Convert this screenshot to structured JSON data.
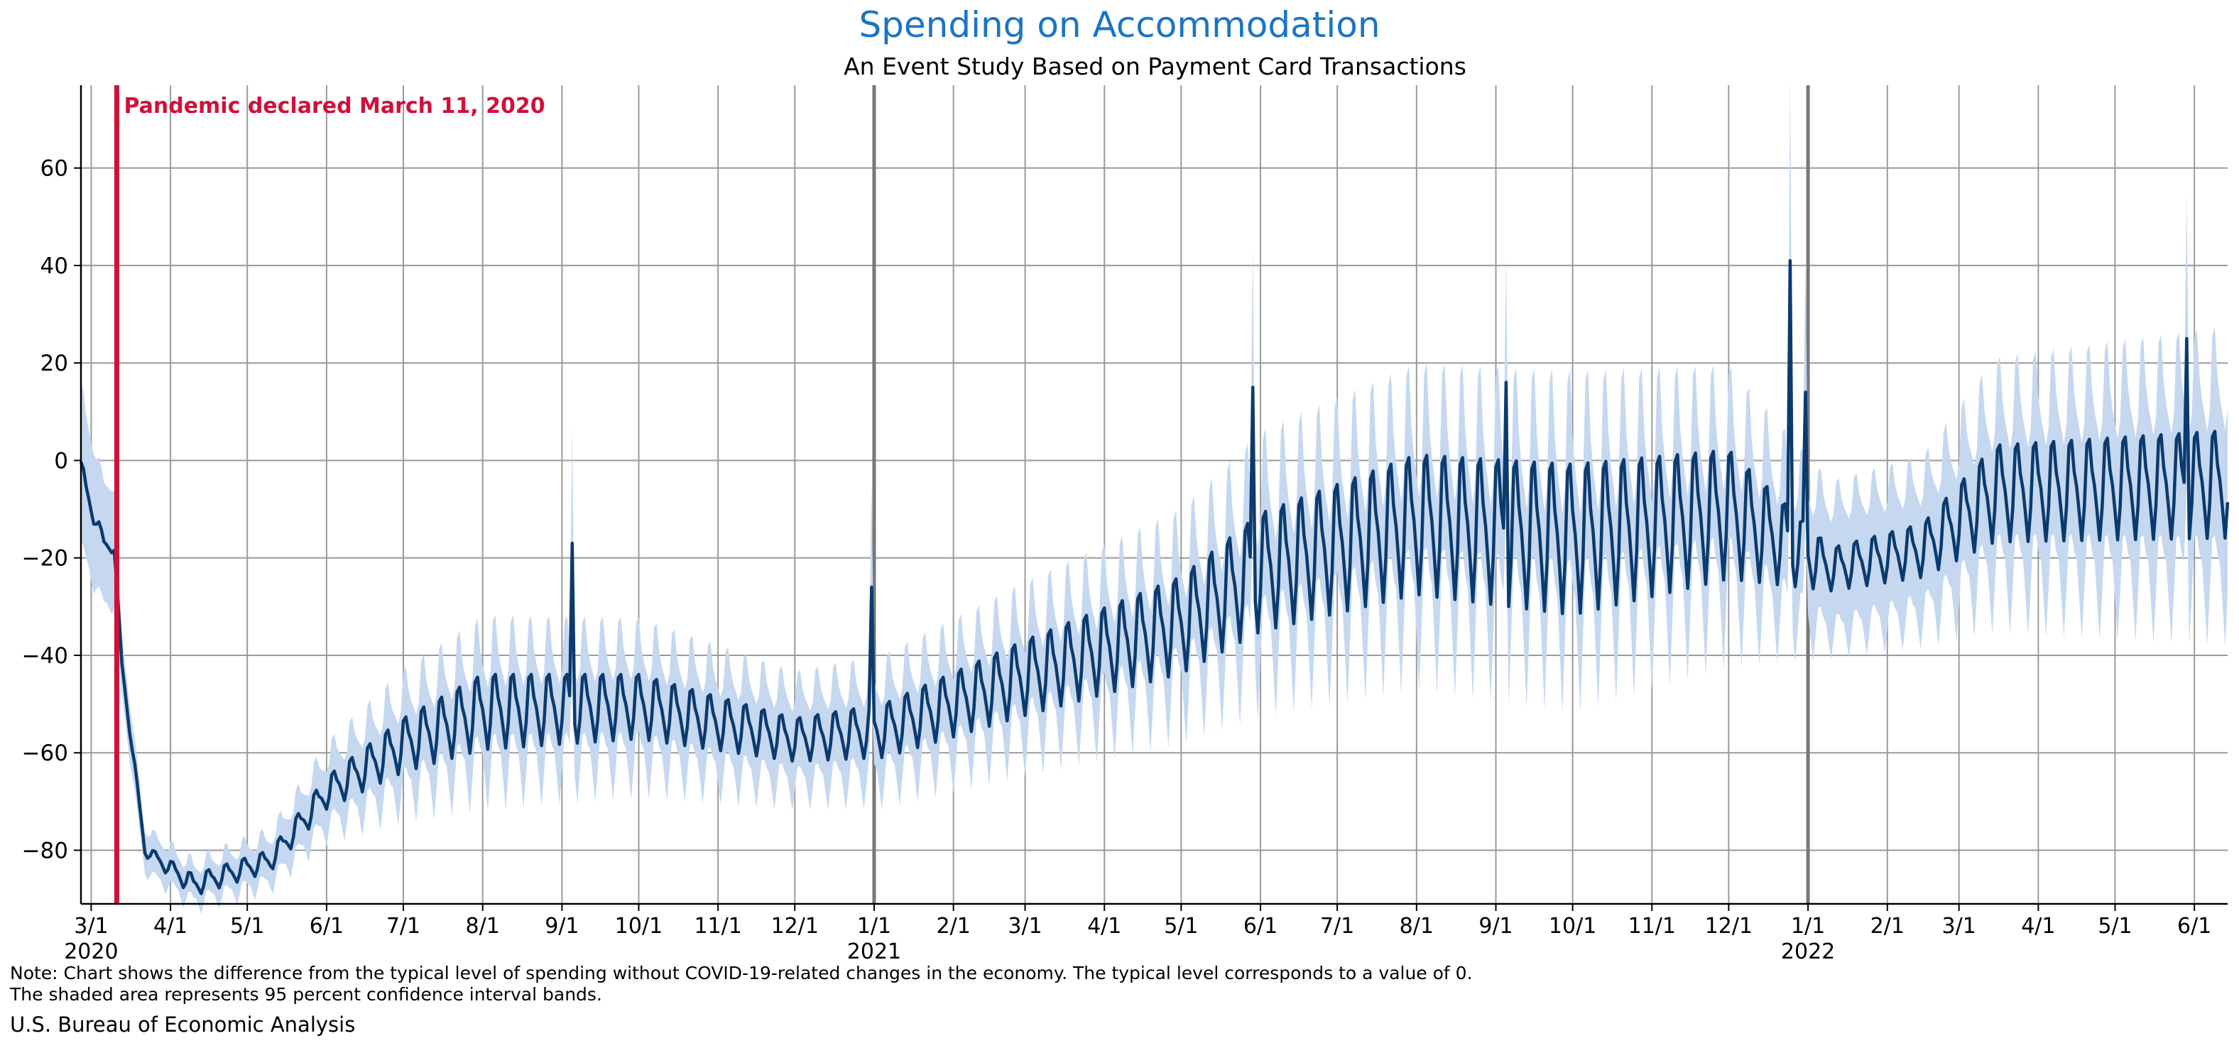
{
  "title": "Spending on Accommodation",
  "subtitle": "An Event Study Based on Payment Card Transactions",
  "note_line1": "Note: Chart shows the difference from the typical level of spending without COVID-19-related changes in the economy. The typical level corresponds to a value of 0.",
  "note_line2": "The shaded area represents 95 percent confidence interval bands.",
  "source": "U.S. Bureau of Economic Analysis",
  "colors": {
    "title": "#1a75c4",
    "line": "#0b3a6e",
    "band": "#c5d8ef",
    "marker": "#d0103a",
    "grid": "#9a9a9a",
    "year_line": "#777777"
  },
  "chart_data": {
    "type": "line",
    "title": "Spending on Accommodation",
    "subtitle": "An Event Study Based on Payment Card Transactions",
    "ylim": [
      -91,
      77
    ],
    "xlim": [
      "2020-02-26",
      "2022-06-14"
    ],
    "y_ticks": [
      60,
      40,
      20,
      0,
      -20,
      -40,
      -60,
      -80
    ],
    "y_tick_labels": [
      "60",
      "40",
      "20",
      "0",
      "−20",
      "−40",
      "−60",
      "−80"
    ],
    "x_ticks": [
      {
        "date": "2020-03-01",
        "label": "3/1",
        "year": "2020"
      },
      {
        "date": "2020-04-01",
        "label": "4/1"
      },
      {
        "date": "2020-05-01",
        "label": "5/1"
      },
      {
        "date": "2020-06-01",
        "label": "6/1"
      },
      {
        "date": "2020-07-01",
        "label": "7/1"
      },
      {
        "date": "2020-08-01",
        "label": "8/1"
      },
      {
        "date": "2020-09-01",
        "label": "9/1"
      },
      {
        "date": "2020-10-01",
        "label": "10/1"
      },
      {
        "date": "2020-11-01",
        "label": "11/1"
      },
      {
        "date": "2020-12-01",
        "label": "12/1"
      },
      {
        "date": "2021-01-01",
        "label": "1/1",
        "year": "2021"
      },
      {
        "date": "2021-02-01",
        "label": "2/1"
      },
      {
        "date": "2021-03-01",
        "label": "3/1"
      },
      {
        "date": "2021-04-01",
        "label": "4/1"
      },
      {
        "date": "2021-05-01",
        "label": "5/1"
      },
      {
        "date": "2021-06-01",
        "label": "6/1"
      },
      {
        "date": "2021-07-01",
        "label": "7/1"
      },
      {
        "date": "2021-08-01",
        "label": "8/1"
      },
      {
        "date": "2021-09-01",
        "label": "9/1"
      },
      {
        "date": "2021-10-01",
        "label": "10/1"
      },
      {
        "date": "2021-11-01",
        "label": "11/1"
      },
      {
        "date": "2021-12-01",
        "label": "12/1"
      },
      {
        "date": "2022-01-01",
        "label": "1/1",
        "year": "2022"
      },
      {
        "date": "2022-02-01",
        "label": "2/1"
      },
      {
        "date": "2022-03-01",
        "label": "3/1"
      },
      {
        "date": "2022-04-01",
        "label": "4/1"
      },
      {
        "date": "2022-05-01",
        "label": "5/1"
      },
      {
        "date": "2022-06-01",
        "label": "6/1"
      }
    ],
    "year_lines": [
      "2021-01-01",
      "2022-01-01"
    ],
    "annotation": {
      "date": "2020-03-11",
      "label": "Pandemic declared March 11, 2020"
    },
    "grid": true,
    "legend": "none",
    "series": [
      {
        "start_date": "2020-02-26",
        "end_date": "2022-06-14",
        "shape": "weekly oscillation",
        "anchors": [
          {
            "date": "2020-02-26",
            "mid": -3,
            "amp": 3,
            "ci": 15
          },
          {
            "date": "2020-03-06",
            "mid": -17,
            "amp": 1,
            "ci": 12
          },
          {
            "date": "2020-03-10",
            "mid": -18,
            "amp": 1,
            "ci": 12
          },
          {
            "date": "2020-03-13",
            "mid": -42,
            "amp": 1,
            "ci": 6
          },
          {
            "date": "2020-03-22",
            "mid": -80,
            "amp": 1,
            "ci": 4
          },
          {
            "date": "2020-04-10",
            "mid": -87,
            "amp": 2,
            "ci": 3
          },
          {
            "date": "2020-05-10",
            "mid": -82,
            "amp": 2,
            "ci": 4
          },
          {
            "date": "2020-06-01",
            "mid": -68,
            "amp": 3,
            "ci": 6
          },
          {
            "date": "2020-07-01",
            "mid": -58,
            "amp": 5,
            "ci": 8
          },
          {
            "date": "2020-08-01",
            "mid": -51,
            "amp": 7,
            "ci": 9
          },
          {
            "date": "2020-10-01",
            "mid": -50,
            "amp": 6,
            "ci": 9
          },
          {
            "date": "2020-12-01",
            "mid": -57,
            "amp": 4,
            "ci": 8
          },
          {
            "date": "2021-01-05",
            "mid": -55,
            "amp": 5,
            "ci": 8
          },
          {
            "date": "2021-03-01",
            "mid": -44,
            "amp": 7,
            "ci": 9
          },
          {
            "date": "2021-05-01",
            "mid": -33,
            "amp": 9,
            "ci": 10
          },
          {
            "date": "2021-06-01",
            "mid": -22,
            "amp": 11,
            "ci": 12
          },
          {
            "date": "2021-08-01",
            "mid": -12,
            "amp": 13,
            "ci": 13
          },
          {
            "date": "2021-10-01",
            "mid": -15,
            "amp": 14,
            "ci": 13
          },
          {
            "date": "2021-12-01",
            "mid": -10,
            "amp": 12,
            "ci": 12
          },
          {
            "date": "2022-01-10",
            "mid": -22,
            "amp": 4,
            "ci": 12
          },
          {
            "date": "2022-02-15",
            "mid": -18,
            "amp": 5,
            "ci": 12
          },
          {
            "date": "2022-03-15",
            "mid": -6,
            "amp": 9,
            "ci": 14
          },
          {
            "date": "2022-06-14",
            "mid": -4,
            "amp": 10,
            "ci": 17
          }
        ],
        "spikes": [
          {
            "date": "2020-09-05",
            "value": -17
          },
          {
            "date": "2020-12-31",
            "value": -26
          },
          {
            "date": "2021-05-29",
            "value": 15
          },
          {
            "date": "2021-09-05",
            "value": 16
          },
          {
            "date": "2021-12-25",
            "value": 41
          },
          {
            "date": "2021-12-31",
            "value": 14
          },
          {
            "date": "2022-05-29",
            "value": 25
          }
        ]
      }
    ]
  }
}
